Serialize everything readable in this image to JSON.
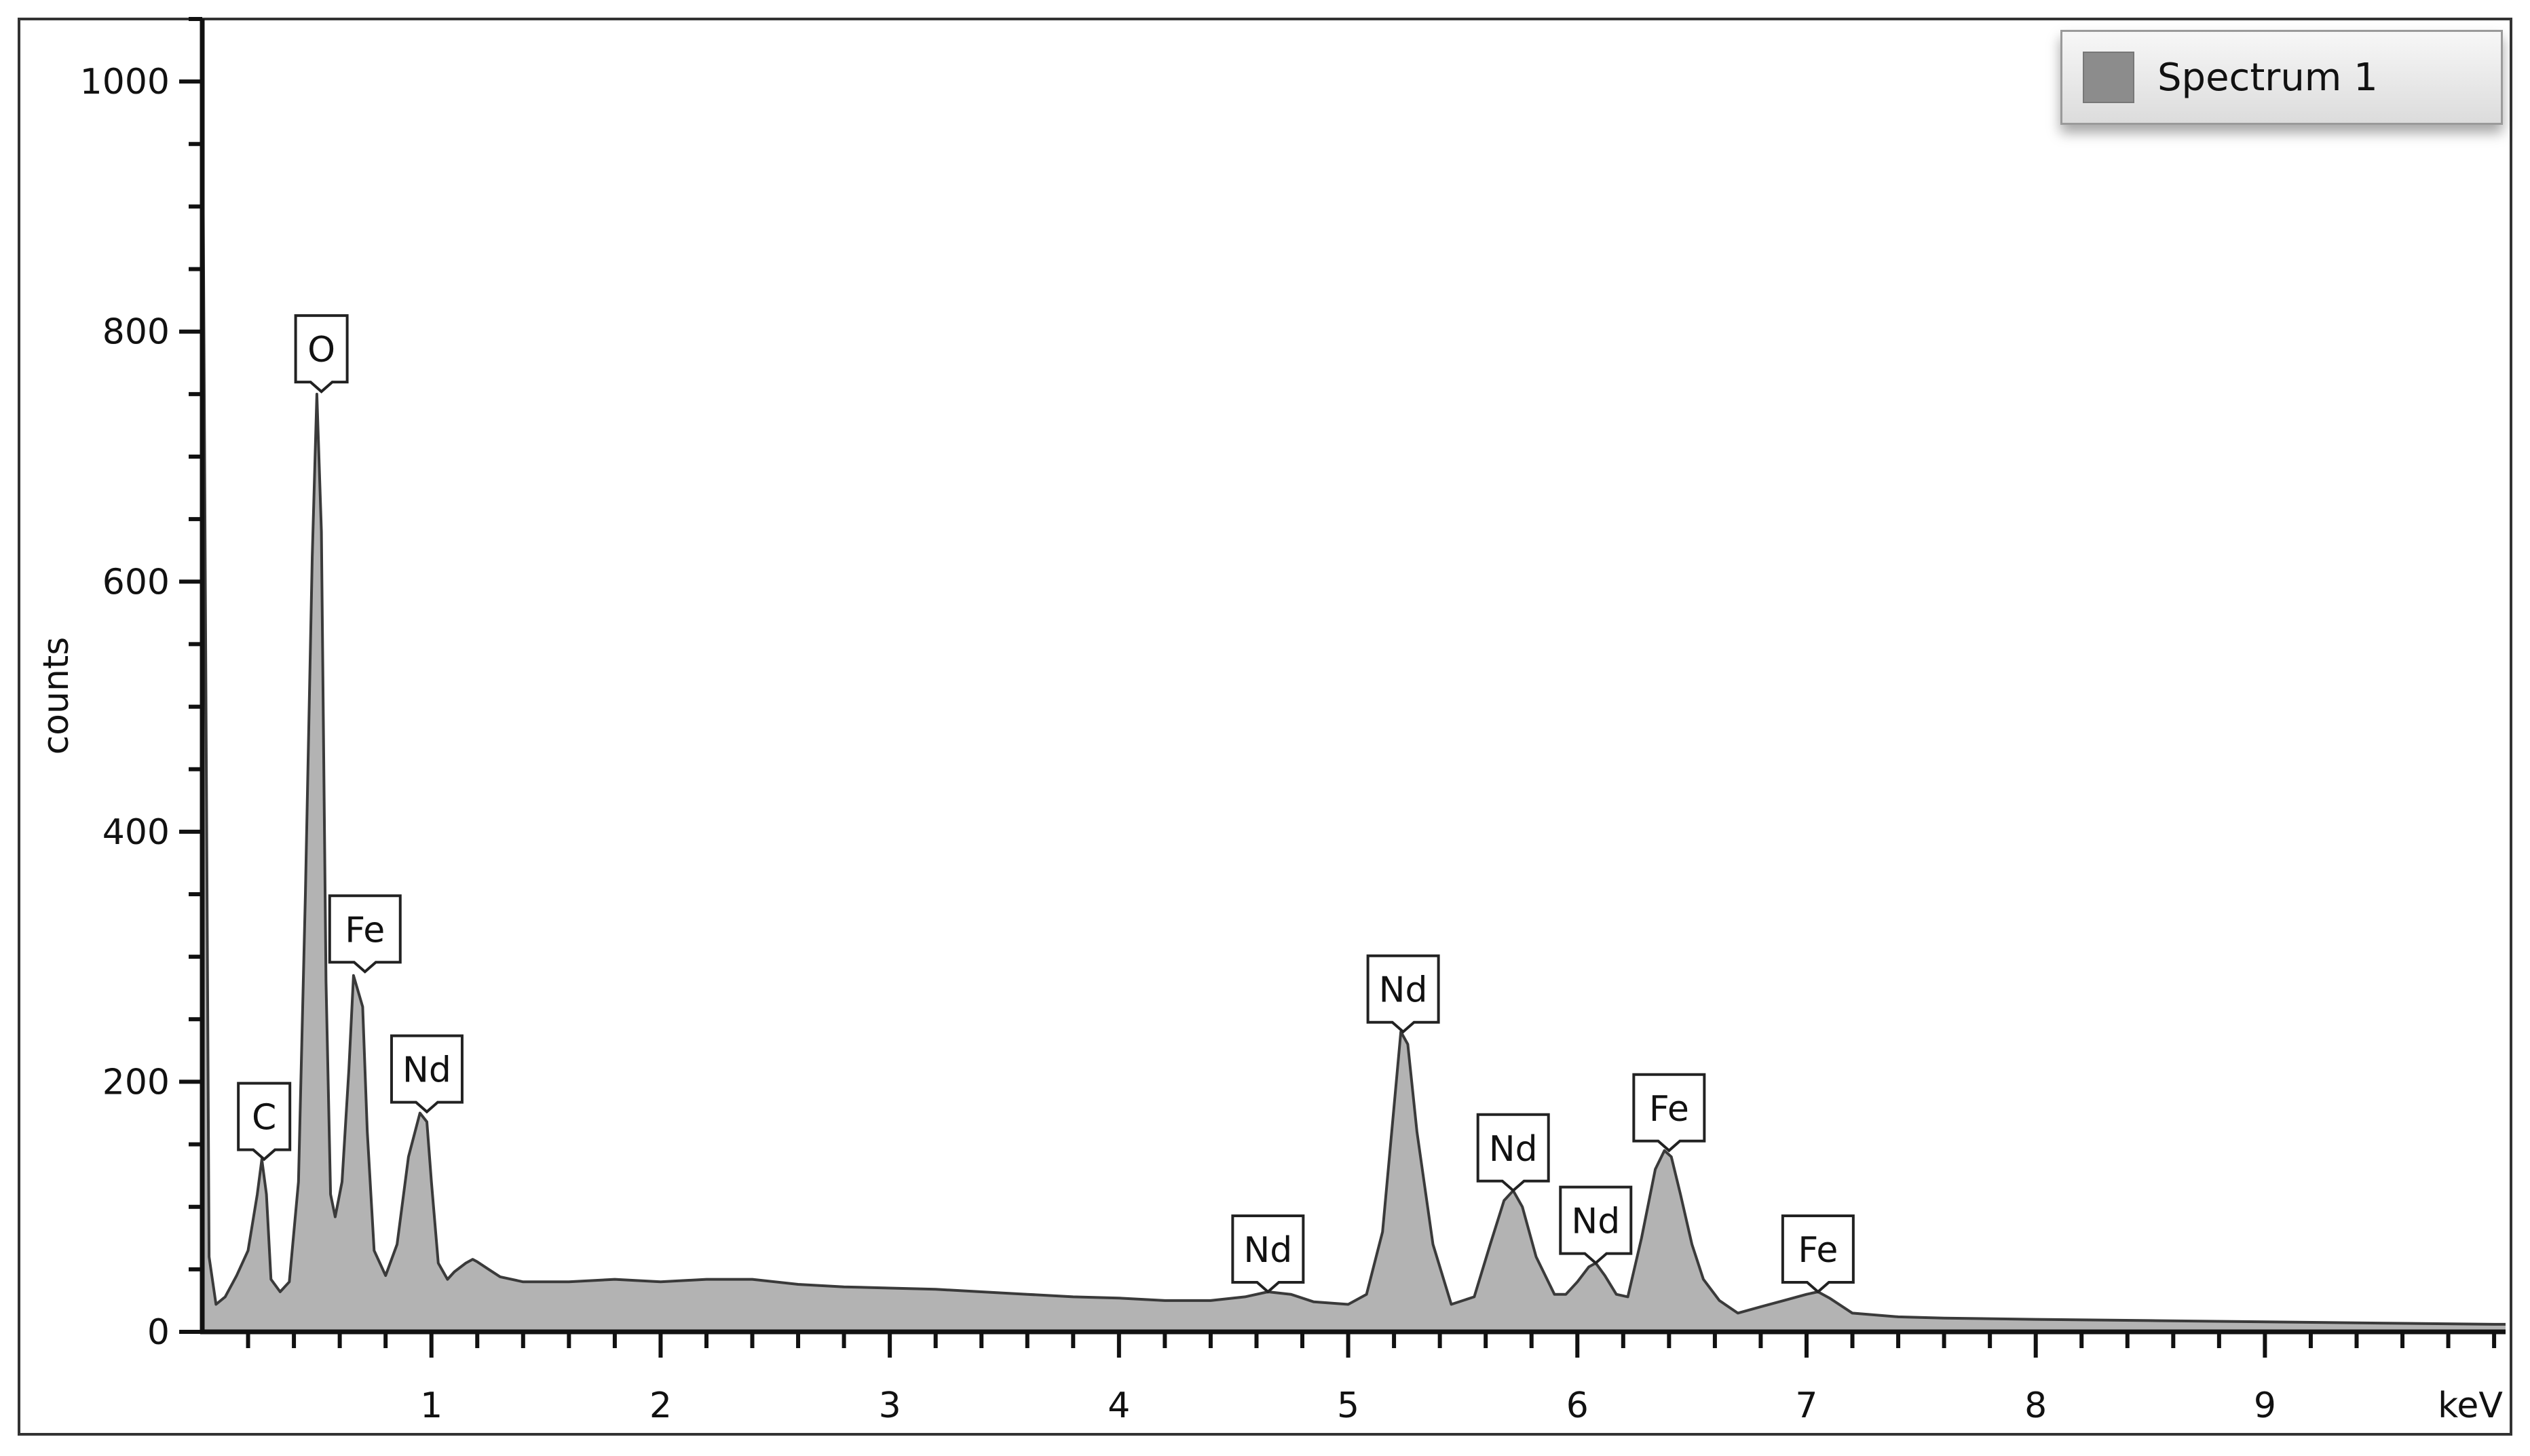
{
  "chart_data": {
    "type": "area",
    "title": "",
    "xlabel": "keV",
    "ylabel": "counts",
    "xlim": [
      0,
      10.05
    ],
    "ylim": [
      0,
      1050
    ],
    "x_ticks": [
      1,
      2,
      3,
      4,
      5,
      6,
      7,
      8,
      9
    ],
    "y_ticks": [
      0,
      200,
      400,
      600,
      800,
      1000
    ],
    "grid": false,
    "legend": {
      "position": "top-right",
      "entries": [
        "Spectrum 1"
      ]
    },
    "colors": {
      "fill": "#b3b3b3",
      "stroke": "#3a3a3a",
      "legend_swatch": "#8c8c8c"
    },
    "series": [
      {
        "name": "Spectrum 1",
        "x": [
          0.0,
          0.02,
          0.03,
          0.06,
          0.1,
          0.15,
          0.2,
          0.24,
          0.26,
          0.28,
          0.3,
          0.34,
          0.38,
          0.42,
          0.45,
          0.48,
          0.5,
          0.52,
          0.54,
          0.56,
          0.58,
          0.61,
          0.64,
          0.66,
          0.7,
          0.72,
          0.75,
          0.8,
          0.85,
          0.9,
          0.95,
          0.98,
          1.0,
          1.03,
          1.07,
          1.1,
          1.15,
          1.18,
          1.2,
          1.25,
          1.3,
          1.4,
          1.6,
          1.8,
          2.0,
          2.2,
          2.4,
          2.6,
          2.8,
          3.0,
          3.2,
          3.4,
          3.6,
          3.8,
          4.0,
          4.2,
          4.4,
          4.55,
          4.65,
          4.75,
          4.85,
          5.0,
          5.08,
          5.15,
          5.2,
          5.23,
          5.26,
          5.3,
          5.37,
          5.45,
          5.55,
          5.62,
          5.68,
          5.72,
          5.76,
          5.82,
          5.9,
          5.95,
          6.0,
          6.05,
          6.08,
          6.12,
          6.17,
          6.22,
          6.28,
          6.34,
          6.38,
          6.41,
          6.45,
          6.5,
          6.55,
          6.62,
          6.7,
          6.8,
          6.9,
          7.0,
          7.05,
          7.1,
          7.2,
          7.4,
          7.6,
          8.0,
          8.5,
          9.0,
          9.5,
          10.0,
          10.05
        ],
        "values": [
          1040,
          380,
          60,
          22,
          28,
          45,
          65,
          110,
          138,
          110,
          42,
          32,
          40,
          120,
          350,
          620,
          750,
          640,
          280,
          110,
          92,
          120,
          210,
          285,
          260,
          160,
          65,
          45,
          70,
          140,
          175,
          168,
          120,
          55,
          42,
          48,
          55,
          58,
          56,
          50,
          44,
          40,
          40,
          42,
          40,
          42,
          42,
          38,
          36,
          35,
          34,
          32,
          30,
          28,
          27,
          25,
          25,
          28,
          32,
          30,
          24,
          22,
          30,
          80,
          180,
          240,
          230,
          160,
          70,
          22,
          28,
          70,
          105,
          113,
          100,
          60,
          30,
          30,
          40,
          52,
          55,
          45,
          30,
          28,
          75,
          130,
          145,
          140,
          110,
          70,
          42,
          25,
          15,
          20,
          25,
          30,
          32,
          27,
          15,
          12,
          11,
          10,
          9,
          8,
          7,
          6,
          6
        ]
      }
    ],
    "annotations": [
      {
        "label": "C",
        "x": 0.27,
        "y": 138
      },
      {
        "label": "O",
        "x": 0.52,
        "y": 752
      },
      {
        "label": "Fe",
        "x": 0.71,
        "y": 288
      },
      {
        "label": "Nd",
        "x": 0.98,
        "y": 176
      },
      {
        "label": "Nd",
        "x": 4.65,
        "y": 32
      },
      {
        "label": "Nd",
        "x": 5.24,
        "y": 240
      },
      {
        "label": "Nd",
        "x": 5.72,
        "y": 113
      },
      {
        "label": "Nd",
        "x": 6.08,
        "y": 55
      },
      {
        "label": "Fe",
        "x": 6.4,
        "y": 145
      },
      {
        "label": "Fe",
        "x": 7.05,
        "y": 32
      }
    ]
  }
}
